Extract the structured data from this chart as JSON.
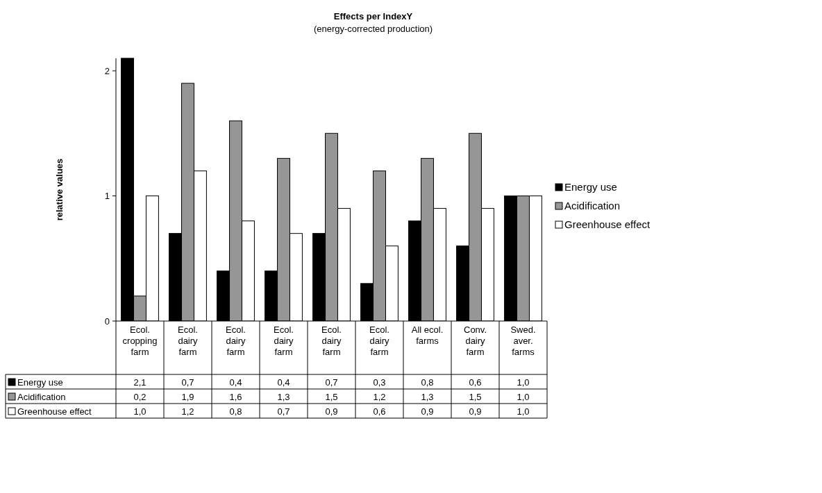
{
  "chart_data": {
    "type": "bar",
    "title": "Effects per IndexY",
    "subtitle": "(energy-corrected production)",
    "ylabel": "relative values",
    "categories": [
      "Ecol.\ncropping\nfarm",
      "Ecol.\ndairy\nfarm",
      "Ecol.\ndairy\nfarm",
      "Ecol.\ndairy\nfarm",
      "Ecol.\ndairy\nfarm",
      "Ecol.\ndairy\nfarm",
      "All ecol.\nfarms",
      "Conv.\ndairy\nfarm",
      "Swed.\naver.\nfarms"
    ],
    "series": [
      {
        "name": "Energy use",
        "color": "#000000",
        "values": [
          2.1,
          0.7,
          0.4,
          0.4,
          0.7,
          0.3,
          0.8,
          0.6,
          1.0
        ],
        "value_labels": [
          "2,1",
          "0,7",
          "0,4",
          "0,4",
          "0,7",
          "0,3",
          "0,8",
          "0,6",
          "1,0"
        ]
      },
      {
        "name": "Acidification",
        "color": "#969696",
        "values": [
          0.2,
          1.9,
          1.6,
          1.3,
          1.5,
          1.2,
          1.3,
          1.5,
          1.0
        ],
        "value_labels": [
          "0,2",
          "1,9",
          "1,6",
          "1,3",
          "1,5",
          "1,2",
          "1,3",
          "1,5",
          "1,0"
        ]
      },
      {
        "name": "Greenhouse effect",
        "color": "#ffffff",
        "values": [
          1.0,
          1.2,
          0.8,
          0.7,
          0.9,
          0.6,
          0.9,
          0.9,
          1.0
        ],
        "value_labels": [
          "1,0",
          "1,2",
          "0,8",
          "0,7",
          "0,9",
          "0,6",
          "0,9",
          "0,9",
          "1,0"
        ]
      }
    ],
    "ylim": [
      0,
      2.1
    ],
    "yticks": [
      0,
      1,
      2
    ],
    "grid": false,
    "legend": "right"
  }
}
